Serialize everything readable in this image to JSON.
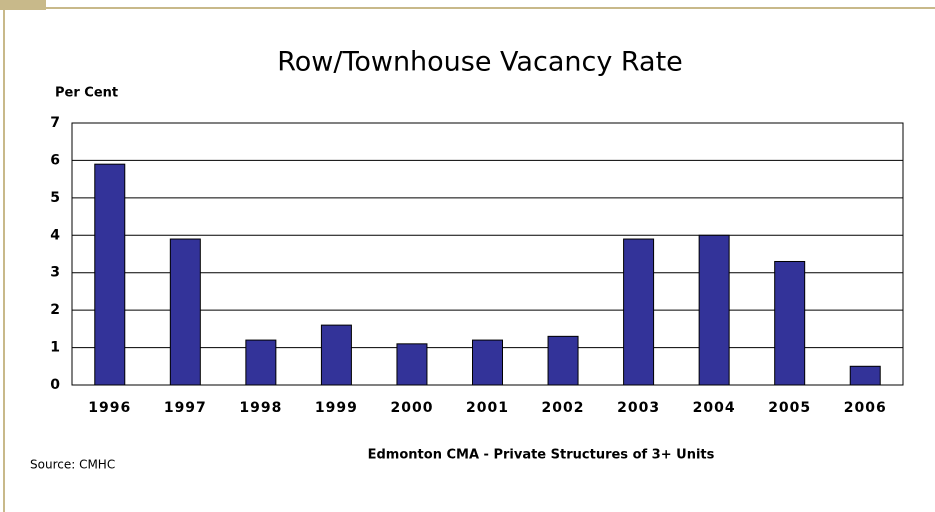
{
  "chart_data": {
    "type": "bar",
    "title": "Row/Townhouse Vacancy Rate",
    "y_label": "Per Cent",
    "subtitle": "Edmonton CMA - Private Structures of 3+ Units",
    "source": "Source: CMHC",
    "categories": [
      "1996",
      "1997",
      "1998",
      "1999",
      "2000",
      "2001",
      "2002",
      "2003",
      "2004",
      "2005",
      "2006"
    ],
    "values": [
      5.9,
      3.9,
      1.2,
      1.6,
      1.1,
      1.2,
      1.3,
      3.9,
      4.0,
      3.3,
      0.5
    ],
    "color": "#333399",
    "ylim": [
      0,
      7
    ],
    "yticks": [
      0,
      1,
      2,
      3,
      4,
      5,
      6,
      7
    ],
    "grid": true
  }
}
